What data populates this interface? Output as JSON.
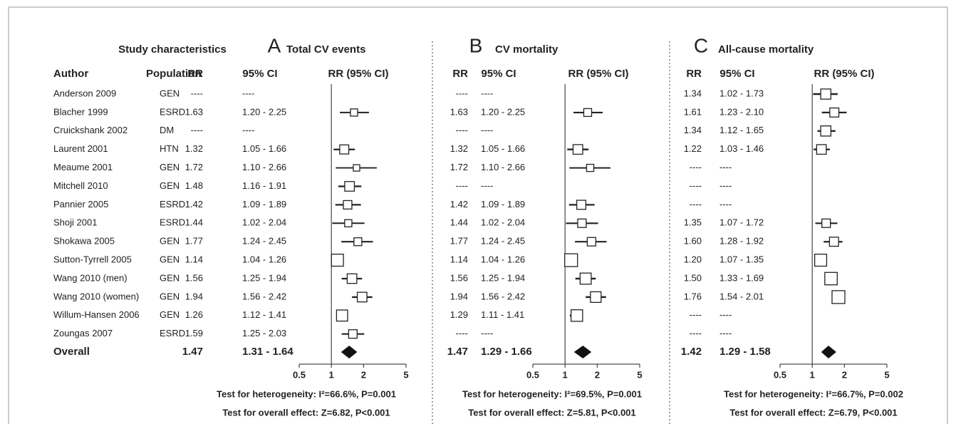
{
  "study_characteristics": {
    "title": "Study characteristics",
    "columns": [
      "Author",
      "Population"
    ],
    "authors": [
      "Anderson 2009",
      "Blacher 1999",
      "Cruickshank 2002",
      "Laurent 2001",
      "Meaume 2001",
      "Mitchell 2010",
      "Pannier 2005",
      "Shoji 2001",
      "Shokawa 2005",
      "Sutton-Tyrrell 2005",
      "Wang 2010 (men)",
      "Wang 2010 (women)",
      "Willum-Hansen 2006",
      "Zoungas 2007"
    ],
    "populations": [
      "GEN",
      "ESRD",
      "DM",
      "HTN",
      "GEN",
      "GEN",
      "ESRD",
      "ESRD",
      "GEN",
      "GEN",
      "GEN",
      "GEN",
      "GEN",
      "ESRD"
    ],
    "overall_label": "Overall"
  },
  "chart_data": [
    {
      "type": "forest",
      "letter": "A",
      "title": "Total CV events",
      "columns": [
        "RR",
        "95% CI",
        "RR (95% CI)"
      ],
      "values": [
        null,
        1.63,
        null,
        1.32,
        1.72,
        1.48,
        1.42,
        1.44,
        1.77,
        1.14,
        1.56,
        1.94,
        1.26,
        1.59
      ],
      "value_labels": [
        "----",
        "1.63",
        "----",
        "1.32",
        "1.72",
        "1.48",
        "1.42",
        "1.44",
        "1.77",
        "1.14",
        "1.56",
        "1.94",
        "1.26",
        "1.59"
      ],
      "ci_low": [
        null,
        1.2,
        null,
        1.05,
        1.1,
        1.16,
        1.09,
        1.02,
        1.24,
        1.04,
        1.25,
        1.56,
        1.12,
        1.25
      ],
      "ci_high": [
        null,
        2.25,
        null,
        1.66,
        2.66,
        1.91,
        1.89,
        2.04,
        2.45,
        1.26,
        1.94,
        2.42,
        1.41,
        2.03
      ],
      "ci_labels": [
        "----",
        "1.20 - 2.25",
        "----",
        "1.05 - 1.66",
        "1.10 - 2.66",
        "1.16 - 1.91",
        "1.09 - 1.89",
        "1.02 - 2.04",
        "1.24 - 2.45",
        "1.04 - 1.26",
        "1.25 - 1.94",
        "1.56 - 2.42",
        "1.12 - 1.41",
        "1.25 - 2.03"
      ],
      "weights": [
        null,
        5,
        null,
        8,
        4,
        9,
        7,
        5,
        6,
        14,
        9,
        9,
        12,
        7
      ],
      "overall": {
        "value": 1.47,
        "ci_low": 1.31,
        "ci_high": 1.64,
        "ci_label": "1.31 - 1.64"
      },
      "xlim": [
        0.5,
        5
      ],
      "xticks": [
        0.5,
        1,
        2,
        5
      ],
      "log_scale": true,
      "heterogeneity": "Test for heterogeneity: I²=66.6%, P=0.001",
      "overall_effect": "Test for overall effect: Z=6.82, P<0.001"
    },
    {
      "type": "forest",
      "letter": "B",
      "title": "CV mortality",
      "columns": [
        "RR",
        "95% CI",
        "RR (95% CI)"
      ],
      "values": [
        null,
        1.63,
        null,
        1.32,
        1.72,
        null,
        1.42,
        1.44,
        1.77,
        1.14,
        1.56,
        1.94,
        1.29,
        null
      ],
      "value_labels": [
        "----",
        "1.63",
        "----",
        "1.32",
        "1.72",
        "----",
        "1.42",
        "1.44",
        "1.77",
        "1.14",
        "1.56",
        "1.94",
        "1.29",
        "----"
      ],
      "ci_low": [
        null,
        1.2,
        null,
        1.05,
        1.1,
        null,
        1.09,
        1.02,
        1.24,
        1.04,
        1.25,
        1.56,
        1.11,
        null
      ],
      "ci_high": [
        null,
        2.25,
        null,
        1.66,
        2.66,
        null,
        1.89,
        2.04,
        2.45,
        1.26,
        1.94,
        2.42,
        1.41,
        null
      ],
      "ci_labels": [
        "----",
        "1.20 - 2.25",
        "----",
        "1.05 - 1.66",
        "1.10 - 2.66",
        "----",
        "1.09 - 1.89",
        "1.02 - 2.04",
        "1.24 - 2.45",
        "1.04 - 1.26",
        "1.25 - 1.94",
        "1.56 - 2.42",
        "1.11 - 1.41",
        "----"
      ],
      "weights": [
        null,
        6,
        null,
        9,
        5,
        null,
        8,
        7,
        7,
        16,
        12,
        11,
        13,
        null
      ],
      "overall": {
        "value": 1.47,
        "ci_low": 1.29,
        "ci_high": 1.66,
        "ci_label": "1.29 - 1.66"
      },
      "xlim": [
        0.5,
        5
      ],
      "xticks": [
        0.5,
        1,
        2,
        5
      ],
      "log_scale": true,
      "heterogeneity": "Test for heterogeneity: I²=69.5%, P=0.001",
      "overall_effect": "Test for overall effect: Z=5.81, P<0.001"
    },
    {
      "type": "forest",
      "letter": "C",
      "title": "All-cause mortality",
      "columns": [
        "RR",
        "95% CI",
        "RR (95% CI)"
      ],
      "values": [
        1.34,
        1.61,
        1.34,
        1.22,
        null,
        null,
        null,
        1.35,
        1.6,
        1.2,
        1.5,
        1.76,
        null,
        null
      ],
      "value_labels": [
        "1.34",
        "1.61",
        "1.34",
        "1.22",
        "----",
        "----",
        "----",
        "1.35",
        "1.60",
        "1.20",
        "1.50",
        "1.76",
        "----",
        "----"
      ],
      "ci_low": [
        1.02,
        1.23,
        1.12,
        1.03,
        null,
        null,
        null,
        1.07,
        1.28,
        1.07,
        1.33,
        1.54,
        null,
        null
      ],
      "ci_high": [
        1.73,
        2.1,
        1.65,
        1.46,
        null,
        null,
        null,
        1.72,
        1.92,
        1.35,
        1.69,
        2.01,
        null,
        null
      ],
      "ci_labels": [
        "1.02 - 1.73",
        "1.23 - 2.10",
        "1.12 - 1.65",
        "1.03 - 1.46",
        "----",
        "----",
        "----",
        "1.07 - 1.72",
        "1.28 - 1.92",
        "1.07 - 1.35",
        "1.33 - 1.69",
        "1.54 - 2.01",
        "----",
        "----"
      ],
      "weights": [
        10,
        8,
        10,
        9,
        null,
        null,
        null,
        7,
        8,
        14,
        15,
        16,
        null,
        null
      ],
      "overall": {
        "value": 1.42,
        "ci_low": 1.29,
        "ci_high": 1.58,
        "ci_label": "1.29 - 1.58"
      },
      "xlim": [
        0.5,
        5
      ],
      "xticks": [
        0.5,
        1,
        2,
        5
      ],
      "log_scale": true,
      "heterogeneity": "Test for heterogeneity: I²=66.7%, P=0.002",
      "overall_effect": "Test for overall effect: Z=6.79, P<0.001"
    }
  ]
}
